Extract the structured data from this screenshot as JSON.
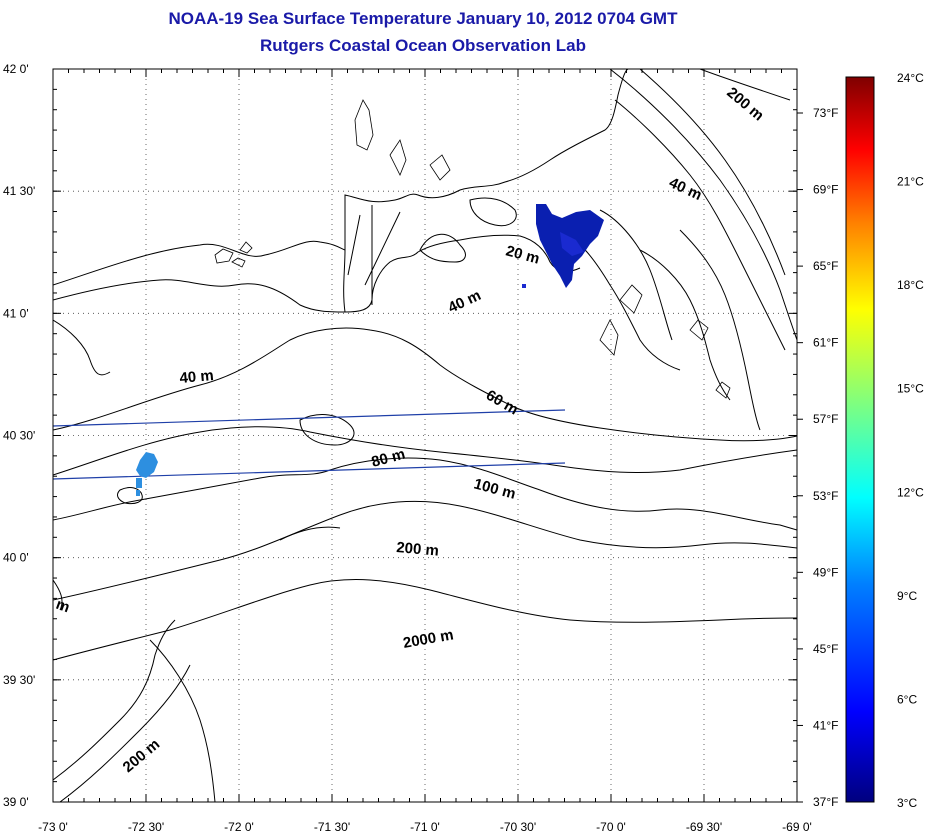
{
  "title": {
    "line1": "NOAA-19 Sea Surface Temperature January 10, 2012 0704 GMT",
    "line2": "Rutgers Coastal Ocean Observation Lab"
  },
  "axes": {
    "x_ticks": [
      "-73 0'",
      "-72 30'",
      "-72 0'",
      "-71 30'",
      "-71 0'",
      "-70 30'",
      "-70 0'",
      "-69 30'",
      "-69 0'"
    ],
    "y_ticks": [
      "42 0'",
      "41 30'",
      "41 0'",
      "40 30'",
      "40 0'",
      "39 30'",
      "39 0'"
    ],
    "lon_range": [
      -73,
      -69
    ],
    "lat_range": [
      39,
      42
    ],
    "grid": "dotted"
  },
  "depth_labels": [
    "200 m",
    "40 m",
    "20 m",
    "40 m",
    "40 m",
    "60 m",
    "80 m",
    "100 m",
    "200 m",
    "2000 m",
    "200 m",
    "m"
  ],
  "colorbar": {
    "celsius_labels": [
      "24°C",
      "21°C",
      "18°C",
      "15°C",
      "12°C",
      "9°C",
      "6°C",
      "3°C"
    ],
    "fahrenheit_labels": [
      "73°F",
      "69°F",
      "65°F",
      "61°F",
      "57°F",
      "53°F",
      "49°F",
      "45°F",
      "41°F",
      "37°F"
    ],
    "range_c": [
      3,
      24
    ],
    "colors": [
      "#00007f",
      "#0000ff",
      "#007fff",
      "#00ffff",
      "#7fff7f",
      "#ffff00",
      "#ff7f00",
      "#ff0000",
      "#7f0000"
    ]
  },
  "colors": {
    "title": "#1a1aa8",
    "contour": "#000000",
    "transect": "#1f3fa8",
    "sst_cold": "#0a1fb0",
    "sst_cool": "#2d8fe0"
  }
}
